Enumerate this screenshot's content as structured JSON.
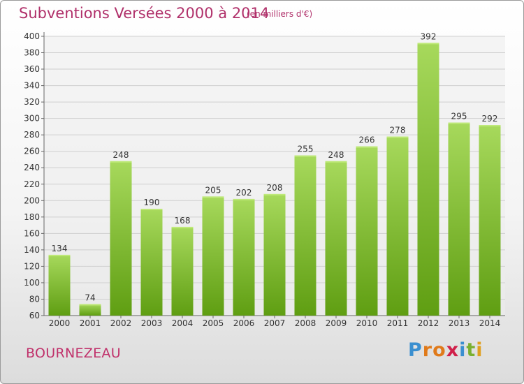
{
  "title": "Subventions Versées 2000 à 2014",
  "subtitle": "(en milliers d'€)",
  "commune": "BOURNEZEAU",
  "logo": {
    "letters": [
      "P",
      "r",
      "o",
      "x",
      "i",
      "t",
      "i"
    ],
    "colors": [
      "#3a8fd0",
      "#e07a1a",
      "#e07a1a",
      "#d0204a",
      "#3a8fd0",
      "#7ab030",
      "#e0a020"
    ]
  },
  "colors": {
    "bar_top": "#a7d95c",
    "bar_bottom": "#5f9e12",
    "text": "#b0306a"
  },
  "chart_data": {
    "type": "bar",
    "title": "Subventions Versées 2000 à 2014",
    "subtitle": "(en milliers d'€)",
    "categories": [
      "2000",
      "2001",
      "2002",
      "2003",
      "2004",
      "2005",
      "2006",
      "2007",
      "2008",
      "2009",
      "2010",
      "2011",
      "2012",
      "2013",
      "2014"
    ],
    "values": [
      134,
      74,
      248,
      190,
      168,
      205,
      202,
      208,
      255,
      248,
      266,
      278,
      392,
      295,
      292
    ],
    "ylim": [
      60,
      400
    ],
    "yticks": [
      60,
      80,
      100,
      120,
      140,
      160,
      180,
      200,
      220,
      240,
      260,
      280,
      300,
      320,
      340,
      360,
      380,
      400
    ],
    "grid": true,
    "data_labels": true
  }
}
